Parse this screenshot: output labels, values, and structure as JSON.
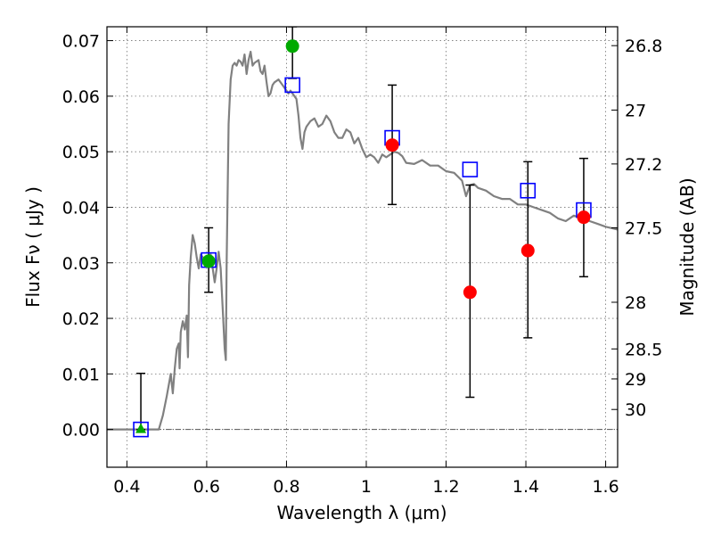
{
  "chart_data": {
    "type": "scatter",
    "title": "",
    "xlabel": "Wavelength  λ (μm)",
    "ylabel": "Flux  Fν  ( μJy )",
    "y2label": "Magnitude (AB)",
    "xlim": [
      0.35,
      1.63
    ],
    "ylim": [
      -0.0068,
      0.0725
    ],
    "grid": true,
    "x_ticks": [
      0.4,
      0.6,
      0.8,
      1.0,
      1.2,
      1.4,
      1.6
    ],
    "x_tick_labels": [
      "0.4",
      "0.6",
      "0.8",
      "1",
      "1.2",
      "1.4",
      "1.6"
    ],
    "y_ticks": [
      0.0,
      0.01,
      0.02,
      0.03,
      0.04,
      0.05,
      0.06,
      0.07
    ],
    "y_tick_labels": [
      "0.00",
      "0.01",
      "0.02",
      "0.03",
      "0.04",
      "0.05",
      "0.06",
      "0.07"
    ],
    "magnitude_ticks": [
      {
        "label": "26.8",
        "flux": 0.0691
      },
      {
        "label": "27",
        "flux": 0.0575
      },
      {
        "label": "27.2",
        "flux": 0.0478
      },
      {
        "label": "27.5",
        "flux": 0.0363
      },
      {
        "label": "28",
        "flux": 0.0229
      },
      {
        "label": "28.5",
        "flux": 0.0145
      },
      {
        "label": "29",
        "flux": 0.0091
      },
      {
        "label": "30",
        "flux": 0.0036
      }
    ],
    "colors": {
      "model": "#808080",
      "model_photometry": "#0000ff",
      "detection": "#ff0000",
      "green": "#00aa00",
      "errorbar": "#000000",
      "zero_line": "#555555"
    },
    "series": [
      {
        "kind": "line",
        "points": [
          [
            0.35,
            0.0
          ],
          [
            0.48,
            0.0
          ],
          [
            0.49,
            0.0025
          ],
          [
            0.5,
            0.006
          ],
          [
            0.51,
            0.01
          ],
          [
            0.515,
            0.0065
          ],
          [
            0.52,
            0.011
          ],
          [
            0.525,
            0.0145
          ],
          [
            0.53,
            0.0155
          ],
          [
            0.532,
            0.011
          ],
          [
            0.535,
            0.0175
          ],
          [
            0.54,
            0.0195
          ],
          [
            0.545,
            0.018
          ],
          [
            0.55,
            0.0205
          ],
          [
            0.553,
            0.013
          ],
          [
            0.556,
            0.026
          ],
          [
            0.56,
            0.031
          ],
          [
            0.565,
            0.035
          ],
          [
            0.57,
            0.0335
          ],
          [
            0.575,
            0.031
          ],
          [
            0.58,
            0.029
          ],
          [
            0.585,
            0.0315
          ],
          [
            0.59,
            0.031
          ],
          [
            0.6,
            0.0305
          ],
          [
            0.61,
            0.0315
          ],
          [
            0.62,
            0.0265
          ],
          [
            0.625,
            0.029
          ],
          [
            0.63,
            0.032
          ],
          [
            0.635,
            0.029
          ],
          [
            0.64,
            0.022
          ],
          [
            0.645,
            0.0145
          ],
          [
            0.648,
            0.0125
          ],
          [
            0.65,
            0.03
          ],
          [
            0.655,
            0.055
          ],
          [
            0.66,
            0.063
          ],
          [
            0.665,
            0.0655
          ],
          [
            0.67,
            0.066
          ],
          [
            0.675,
            0.0655
          ],
          [
            0.68,
            0.0665
          ],
          [
            0.685,
            0.0662
          ],
          [
            0.69,
            0.0655
          ],
          [
            0.695,
            0.0675
          ],
          [
            0.7,
            0.064
          ],
          [
            0.705,
            0.0665
          ],
          [
            0.71,
            0.068
          ],
          [
            0.715,
            0.0655
          ],
          [
            0.72,
            0.066
          ],
          [
            0.73,
            0.0665
          ],
          [
            0.735,
            0.0645
          ],
          [
            0.74,
            0.064
          ],
          [
            0.745,
            0.0655
          ],
          [
            0.75,
            0.0625
          ],
          [
            0.755,
            0.06
          ],
          [
            0.76,
            0.0605
          ],
          [
            0.765,
            0.062
          ],
          [
            0.77,
            0.0625
          ],
          [
            0.78,
            0.063
          ],
          [
            0.79,
            0.062
          ],
          [
            0.8,
            0.061
          ],
          [
            0.805,
            0.0605
          ],
          [
            0.81,
            0.061
          ],
          [
            0.82,
            0.06
          ],
          [
            0.825,
            0.0595
          ],
          [
            0.83,
            0.0565
          ],
          [
            0.835,
            0.0525
          ],
          [
            0.84,
            0.0505
          ],
          [
            0.845,
            0.0535
          ],
          [
            0.85,
            0.0545
          ],
          [
            0.86,
            0.0555
          ],
          [
            0.87,
            0.056
          ],
          [
            0.88,
            0.0545
          ],
          [
            0.89,
            0.055
          ],
          [
            0.9,
            0.0565
          ],
          [
            0.91,
            0.0555
          ],
          [
            0.92,
            0.0535
          ],
          [
            0.93,
            0.0525
          ],
          [
            0.94,
            0.0525
          ],
          [
            0.95,
            0.054
          ],
          [
            0.96,
            0.0535
          ],
          [
            0.97,
            0.0515
          ],
          [
            0.98,
            0.0525
          ],
          [
            0.99,
            0.0505
          ],
          [
            1.0,
            0.049
          ],
          [
            1.01,
            0.0495
          ],
          [
            1.02,
            0.049
          ],
          [
            1.03,
            0.048
          ],
          [
            1.04,
            0.0495
          ],
          [
            1.05,
            0.049
          ],
          [
            1.06,
            0.0495
          ],
          [
            1.07,
            0.05
          ],
          [
            1.08,
            0.0498
          ],
          [
            1.09,
            0.0492
          ],
          [
            1.1,
            0.048
          ],
          [
            1.12,
            0.0478
          ],
          [
            1.14,
            0.0485
          ],
          [
            1.16,
            0.0475
          ],
          [
            1.18,
            0.0475
          ],
          [
            1.2,
            0.0465
          ],
          [
            1.22,
            0.0462
          ],
          [
            1.24,
            0.0448
          ],
          [
            1.25,
            0.042
          ],
          [
            1.26,
            0.044
          ],
          [
            1.27,
            0.0442
          ],
          [
            1.28,
            0.0435
          ],
          [
            1.3,
            0.043
          ],
          [
            1.32,
            0.042
          ],
          [
            1.34,
            0.0415
          ],
          [
            1.36,
            0.0415
          ],
          [
            1.38,
            0.0405
          ],
          [
            1.4,
            0.0405
          ],
          [
            1.42,
            0.04
          ],
          [
            1.44,
            0.0395
          ],
          [
            1.46,
            0.039
          ],
          [
            1.48,
            0.038
          ],
          [
            1.5,
            0.0375
          ],
          [
            1.52,
            0.0385
          ],
          [
            1.54,
            0.038
          ],
          [
            1.56,
            0.0375
          ],
          [
            1.58,
            0.037
          ],
          [
            1.6,
            0.0365
          ],
          [
            1.63,
            0.036
          ]
        ]
      },
      {
        "kind": "open-square",
        "points": [
          [
            0.435,
            0.0
          ],
          [
            0.605,
            0.0305
          ],
          [
            0.815,
            0.062
          ],
          [
            1.065,
            0.0525
          ],
          [
            1.26,
            0.0468
          ],
          [
            1.405,
            0.043
          ],
          [
            1.545,
            0.0395
          ]
        ]
      },
      {
        "kind": "filled-circle",
        "color": "red",
        "points": [
          {
            "x": 1.065,
            "y": 0.0512,
            "err_low": 0.0405,
            "err_high": 0.062
          },
          {
            "x": 1.26,
            "y": 0.0247,
            "err_low": 0.0058,
            "err_high": 0.044
          },
          {
            "x": 1.405,
            "y": 0.0322,
            "err_low": 0.0165,
            "err_high": 0.0482
          },
          {
            "x": 1.545,
            "y": 0.0382,
            "err_low": 0.0275,
            "err_high": 0.0488
          }
        ]
      },
      {
        "kind": "filled-circle",
        "color": "green",
        "points": [
          {
            "x": 0.605,
            "y": 0.0303,
            "err_low": 0.0247,
            "err_high": 0.0363
          },
          {
            "x": 0.815,
            "y": 0.069,
            "err_low": 0.0632,
            "err_high": 0.0725
          }
        ]
      },
      {
        "kind": "filled-triangle",
        "color": "green",
        "points": [
          {
            "x": 0.435,
            "y": 0.0,
            "err_low": 0.0,
            "err_high": 0.0101
          }
        ]
      }
    ]
  }
}
